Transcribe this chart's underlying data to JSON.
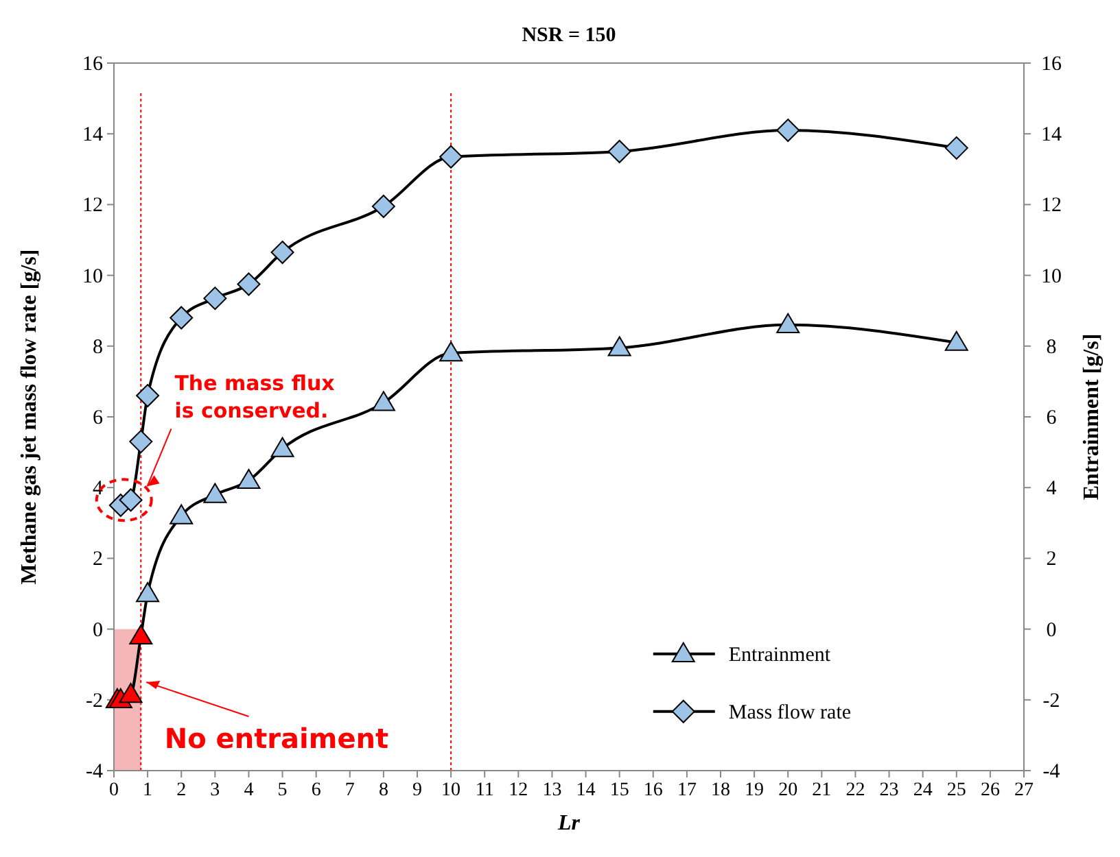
{
  "chart_data": {
    "type": "line",
    "title": "NSR = 150",
    "xlabel": "Lr",
    "ylabel": "Methane gas jet mass flow rate  [g/s]",
    "y2label": "Entrainment  [g/s]",
    "xlim": [
      0,
      27
    ],
    "xticks": [
      0,
      1,
      2,
      3,
      4,
      5,
      6,
      7,
      8,
      9,
      10,
      11,
      12,
      13,
      14,
      15,
      16,
      17,
      18,
      19,
      20,
      21,
      22,
      23,
      24,
      25,
      26,
      27
    ],
    "ylim": [
      -4,
      16
    ],
    "yticks": [
      -4,
      -2,
      0,
      2,
      4,
      6,
      8,
      10,
      12,
      14,
      16
    ],
    "y2lim": [
      -4,
      16
    ],
    "y2ticks": [
      -4,
      -2,
      0,
      2,
      4,
      6,
      8,
      10,
      12,
      14,
      16
    ],
    "series": [
      {
        "name": "Entrainment",
        "marker": "triangle",
        "color": "#9dc3e6",
        "colors": [
          "#ff0000",
          "#ff0000",
          "#ff0000",
          "#ff0000",
          "#9dc3e6",
          "#9dc3e6",
          "#9dc3e6",
          "#9dc3e6",
          "#9dc3e6",
          "#9dc3e6",
          "#9dc3e6",
          "#9dc3e6",
          "#9dc3e6",
          "#9dc3e6"
        ],
        "x": [
          0.1,
          0.2,
          0.5,
          0.8,
          1,
          2,
          3,
          4,
          5,
          8,
          10,
          15,
          20,
          25
        ],
        "values": [
          -2.0,
          -2.0,
          -1.85,
          -0.2,
          1.0,
          3.2,
          3.8,
          4.2,
          5.1,
          6.4,
          7.8,
          7.95,
          8.6,
          8.1
        ]
      },
      {
        "name": "Mass flow rate",
        "marker": "diamond",
        "color": "#9dc3e6",
        "x": [
          0.2,
          0.5,
          0.8,
          1,
          2,
          3,
          4,
          5,
          8,
          10,
          15,
          20,
          25
        ],
        "values": [
          3.5,
          3.65,
          5.3,
          6.6,
          8.8,
          9.35,
          9.75,
          10.65,
          11.95,
          13.35,
          13.5,
          14.1,
          13.6
        ]
      }
    ],
    "ref_lines": [
      {
        "axis": "x",
        "value": 0.8,
        "color": "#ff0000",
        "line_style": "dotted"
      },
      {
        "axis": "x",
        "value": 10,
        "color": "#ff0000",
        "line_style": "dotted"
      }
    ],
    "bands": [
      {
        "axis": "x",
        "from": 0,
        "to": 0.8,
        "color": "#f4b6b6"
      }
    ],
    "annotations": [
      "The mass flux is conserved.",
      {
        "text": "No entraiment",
        "x": 0.8,
        "y": -1.5
      }
    ],
    "legend": "bottom right",
    "grid": false,
    "line_style": "solid"
  }
}
